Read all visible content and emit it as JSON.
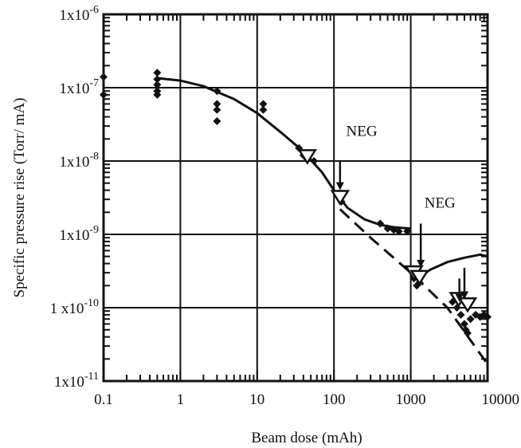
{
  "chart_data": {
    "type": "scatter",
    "title": "",
    "xlabel": "Beam dose (mAh)",
    "ylabel": "Specific pressure rise (Torr/ mA)",
    "xscale": "log",
    "yscale": "log",
    "xlim": [
      0.1,
      10000
    ],
    "ylim": [
      1e-11,
      1e-06
    ],
    "grid": true,
    "x_tick_labels": [
      "0.1",
      "1",
      "10",
      "100",
      "1000",
      "10000"
    ],
    "x_tick_values": [
      0.1,
      1,
      10,
      100,
      1000,
      10000
    ],
    "y_tick_labels": [
      {
        "mantissa": "1x10",
        "exp": "-11",
        "value": 1e-11
      },
      {
        "mantissa": "1 x10",
        "exp": "-10",
        "value": 1e-10
      },
      {
        "mantissa": "1x10",
        "exp": "-9",
        "value": 1e-09
      },
      {
        "mantissa": "1x10",
        "exp": "-8",
        "value": 1e-08
      },
      {
        "mantissa": "1x10",
        "exp": "-7",
        "value": 1e-07
      },
      {
        "mantissa": "1x10",
        "exp": "-6",
        "value": 1e-06
      }
    ],
    "series": [
      {
        "marker": "diamond",
        "color": "#111111",
        "points": [
          [
            0.1,
            1.4e-07
          ],
          [
            0.1,
            8e-08
          ],
          [
            0.5,
            1.6e-07
          ],
          [
            0.5,
            1.3e-07
          ],
          [
            0.5,
            1.1e-07
          ],
          [
            0.5,
            9e-08
          ],
          [
            0.5,
            8e-08
          ],
          [
            3,
            9e-08
          ],
          [
            3,
            6e-08
          ],
          [
            3,
            5e-08
          ],
          [
            3,
            3.5e-08
          ],
          [
            12,
            6e-08
          ],
          [
            12,
            5e-08
          ],
          [
            35,
            1.5e-08
          ],
          [
            40,
            1.2e-08
          ],
          [
            45,
            1.05e-08
          ],
          [
            55,
            1e-08
          ],
          [
            120,
            3.5e-09
          ],
          [
            125,
            2.8e-09
          ],
          [
            400,
            1.4e-09
          ],
          [
            500,
            1.2e-09
          ],
          [
            600,
            1.15e-09
          ],
          [
            700,
            1.1e-09
          ],
          [
            900,
            1.1e-09
          ],
          [
            1100,
            2.5e-10
          ],
          [
            1200,
            2e-10
          ],
          [
            1300,
            2.2e-10
          ],
          [
            3500,
            1.2e-10
          ],
          [
            4000,
            1e-10
          ],
          [
            4500,
            8e-11
          ],
          [
            5000,
            6e-11
          ],
          [
            5200,
            5e-11
          ],
          [
            5500,
            4.5e-11
          ],
          [
            6000,
            7e-11
          ],
          [
            7000,
            8e-11
          ],
          [
            8000,
            7.5e-11
          ],
          [
            9000,
            8e-11
          ],
          [
            10000,
            7.5e-11
          ]
        ]
      },
      {
        "marker": "triangle-down-open",
        "color": "#111111",
        "points": [
          [
            45,
            1.15e-08
          ],
          [
            120,
            3.2e-09
          ],
          [
            1100,
            3e-10
          ],
          [
            1300,
            2.6e-10
          ],
          [
            4200,
            1.3e-10
          ],
          [
            5500,
            1.1e-10
          ]
        ]
      },
      {
        "style": "solid-line",
        "color": "#111111",
        "points": [
          [
            0.5,
            1.35e-07
          ],
          [
            1,
            1.25e-07
          ],
          [
            2,
            1.05e-07
          ],
          [
            5,
            7e-08
          ],
          [
            10,
            4.5e-08
          ],
          [
            20,
            2.5e-08
          ],
          [
            40,
            1.35e-08
          ],
          [
            70,
            7e-09
          ],
          [
            100,
            4e-09
          ],
          [
            150,
            2.3e-09
          ],
          [
            250,
            1.6e-09
          ],
          [
            400,
            1.35e-09
          ],
          [
            600,
            1.25e-09
          ],
          [
            1000,
            1.2e-09
          ]
        ]
      },
      {
        "style": "solid-line",
        "color": "#111111",
        "points": [
          [
            1200,
            2.5e-10
          ],
          [
            1800,
            3.3e-10
          ],
          [
            3000,
            4.2e-10
          ],
          [
            5000,
            4.8e-10
          ],
          [
            8000,
            5.3e-10
          ],
          [
            10000,
            5e-10
          ]
        ]
      },
      {
        "style": "dashed-line",
        "color": "#111111",
        "points": [
          [
            120,
            2.2e-09
          ],
          [
            300,
            9e-10
          ],
          [
            1000,
            3e-10
          ],
          [
            3000,
            1e-10
          ],
          [
            10000,
            1.7e-11
          ]
        ]
      }
    ],
    "annotations": [
      {
        "text": "NEG",
        "x": 230,
        "y": 2.2e-08
      },
      {
        "text": "NEG",
        "x": 2400,
        "y": 2.3e-09
      }
    ],
    "arrows": [
      {
        "x": 120,
        "y_from": 1e-08,
        "y_to": 4e-09
      },
      {
        "x": 1350,
        "y_from": 1.4e-09,
        "y_to": 3.5e-10
      },
      {
        "x": 4300,
        "y_from": 2.5e-10,
        "y_to": 1.2e-10
      },
      {
        "x": 5000,
        "y_from": 3.5e-10,
        "y_to": 1.3e-10
      }
    ]
  }
}
